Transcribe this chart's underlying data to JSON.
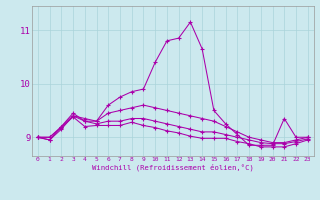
{
  "xlabel": "Windchill (Refroidissement éolien,°C)",
  "x_ticks": [
    0,
    1,
    2,
    3,
    4,
    5,
    6,
    7,
    8,
    9,
    10,
    11,
    12,
    13,
    14,
    15,
    16,
    17,
    18,
    19,
    20,
    21,
    22,
    23
  ],
  "ylim": [
    8.65,
    11.45
  ],
  "xlim": [
    -0.5,
    23.5
  ],
  "yticks": [
    9,
    10,
    11
  ],
  "background_color": "#cce9ee",
  "grid_color": "#aad4da",
  "line_color": "#aa00aa",
  "line1": [
    9.0,
    8.95,
    9.2,
    9.45,
    9.3,
    9.3,
    9.6,
    9.75,
    9.85,
    9.9,
    10.4,
    10.8,
    10.85,
    11.15,
    10.65,
    9.5,
    9.25,
    9.05,
    8.85,
    8.85,
    8.85,
    9.35,
    9.0,
    9.0
  ],
  "line2": [
    9.0,
    8.95,
    9.15,
    9.4,
    9.35,
    9.3,
    9.45,
    9.5,
    9.55,
    9.6,
    9.55,
    9.5,
    9.45,
    9.4,
    9.35,
    9.3,
    9.2,
    9.1,
    9.0,
    8.95,
    8.9,
    8.9,
    8.95,
    9.0
  ],
  "line3": [
    9.0,
    9.0,
    9.2,
    9.4,
    9.3,
    9.25,
    9.3,
    9.3,
    9.35,
    9.35,
    9.3,
    9.25,
    9.2,
    9.15,
    9.1,
    9.1,
    9.05,
    9.0,
    8.95,
    8.9,
    8.88,
    8.88,
    8.92,
    8.97
  ],
  "line4": [
    9.0,
    9.0,
    9.18,
    9.38,
    9.2,
    9.22,
    9.22,
    9.22,
    9.28,
    9.22,
    9.18,
    9.12,
    9.08,
    9.02,
    8.98,
    8.98,
    8.98,
    8.92,
    8.88,
    8.82,
    8.82,
    8.82,
    8.88,
    8.95
  ]
}
